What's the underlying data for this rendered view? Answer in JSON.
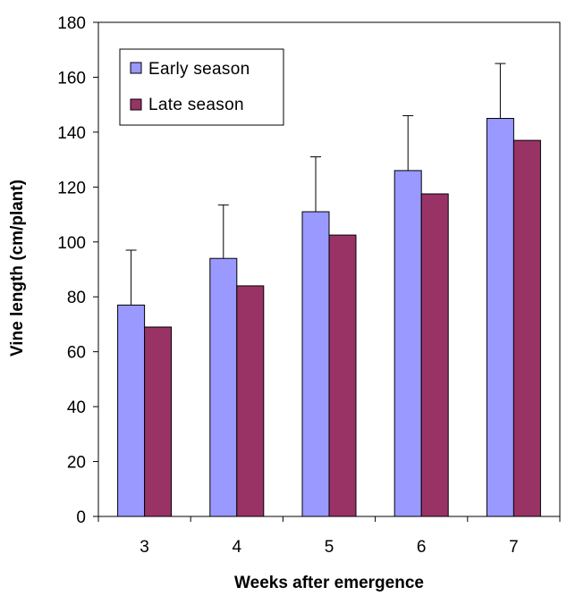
{
  "chart_data": {
    "type": "bar",
    "title": "",
    "xlabel": "Weeks after emergence",
    "ylabel": "Vine length (cm/plant)",
    "categories": [
      "3",
      "4",
      "5",
      "6",
      "7"
    ],
    "ylim": [
      0,
      180
    ],
    "yticks": [
      0,
      20,
      40,
      60,
      80,
      100,
      120,
      140,
      160,
      180
    ],
    "grid": false,
    "legend": "top-left",
    "series": [
      {
        "name": "Early season",
        "color": "#9999FF",
        "values": [
          77,
          94,
          111,
          126,
          145
        ],
        "error_plus": [
          20,
          19.5,
          20,
          20,
          20
        ]
      },
      {
        "name": "Late season",
        "color": "#993366",
        "values": [
          69,
          84,
          102.5,
          117.5,
          137
        ]
      }
    ]
  }
}
